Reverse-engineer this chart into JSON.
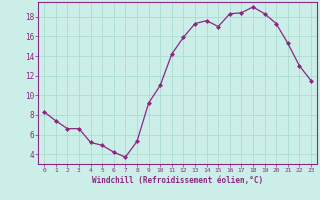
{
  "x": [
    0,
    1,
    2,
    3,
    4,
    5,
    6,
    7,
    8,
    9,
    10,
    11,
    12,
    13,
    14,
    15,
    16,
    17,
    18,
    19,
    20,
    21,
    22,
    23
  ],
  "y": [
    8.3,
    7.4,
    6.6,
    6.6,
    5.2,
    4.9,
    4.2,
    3.7,
    5.3,
    9.2,
    11.0,
    14.2,
    15.9,
    17.3,
    17.6,
    17.0,
    18.3,
    18.4,
    19.0,
    18.3,
    17.3,
    15.3,
    13.0,
    11.5
  ],
  "line_color": "#8B2882",
  "marker": "D",
  "marker_size": 2.0,
  "bg_color": "#cceee8",
  "grid_color": "#aaddcc",
  "xlabel": "Windchill (Refroidissement éolien,°C)",
  "xlabel_color": "#8B2882",
  "tick_color": "#8B2882",
  "spine_color": "#8B2882",
  "ylim": [
    3.0,
    19.5
  ],
  "yticks": [
    4,
    6,
    8,
    10,
    12,
    14,
    16,
    18
  ],
  "xticks": [
    0,
    1,
    2,
    3,
    4,
    5,
    6,
    7,
    8,
    9,
    10,
    11,
    12,
    13,
    14,
    15,
    16,
    17,
    18,
    19,
    20,
    21,
    22,
    23
  ],
  "font_family": "monospace",
  "tick_fontsize_x": 4.5,
  "tick_fontsize_y": 5.5,
  "xlabel_fontsize": 5.5,
  "linewidth": 0.9
}
